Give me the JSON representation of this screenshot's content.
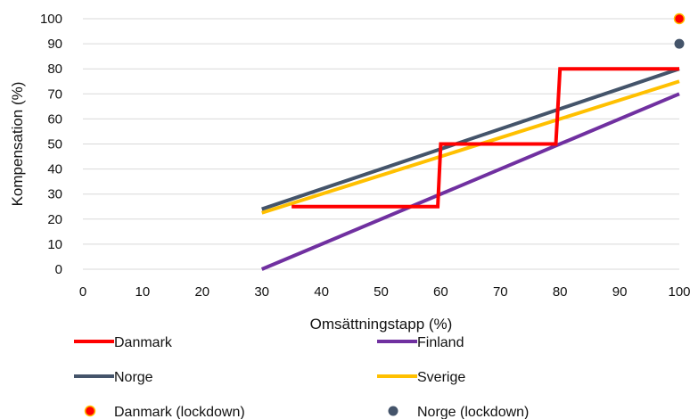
{
  "chart_data": {
    "type": "line",
    "xlabel": "Omsättningstapp (%)",
    "ylabel": "Kompensation (%)",
    "xlim": [
      0,
      100
    ],
    "ylim": [
      0,
      100
    ],
    "xticks": [
      0,
      10,
      20,
      30,
      40,
      50,
      60,
      70,
      80,
      90,
      100
    ],
    "yticks": [
      0,
      10,
      20,
      30,
      40,
      50,
      60,
      70,
      80,
      90,
      100
    ],
    "grid": "horizontal",
    "legend_position": "bottom",
    "series": [
      {
        "name": "Danmark",
        "color": "#FF0000",
        "kind": "line",
        "points": [
          [
            35,
            25
          ],
          [
            59.5,
            25
          ],
          [
            60,
            50
          ],
          [
            79.3,
            50
          ],
          [
            80,
            80
          ],
          [
            100,
            80
          ]
        ]
      },
      {
        "name": "Finland",
        "color": "#7030A0",
        "kind": "line",
        "points": [
          [
            30,
            0
          ],
          [
            100,
            70
          ]
        ]
      },
      {
        "name": "Norge",
        "color": "#44546A",
        "kind": "line",
        "points": [
          [
            30,
            24
          ],
          [
            100,
            80
          ]
        ]
      },
      {
        "name": "Sverige",
        "color": "#FFC000",
        "kind": "line",
        "points": [
          [
            30,
            22.5
          ],
          [
            100,
            75
          ]
        ]
      },
      {
        "name": "Danmark (lockdown)",
        "color": "#FF0000",
        "edge": "#FFC000",
        "kind": "marker",
        "points": [
          [
            100,
            100
          ]
        ]
      },
      {
        "name": "Norge (lockdown)",
        "color": "#44546A",
        "kind": "marker",
        "points": [
          [
            100,
            90
          ]
        ]
      }
    ]
  }
}
